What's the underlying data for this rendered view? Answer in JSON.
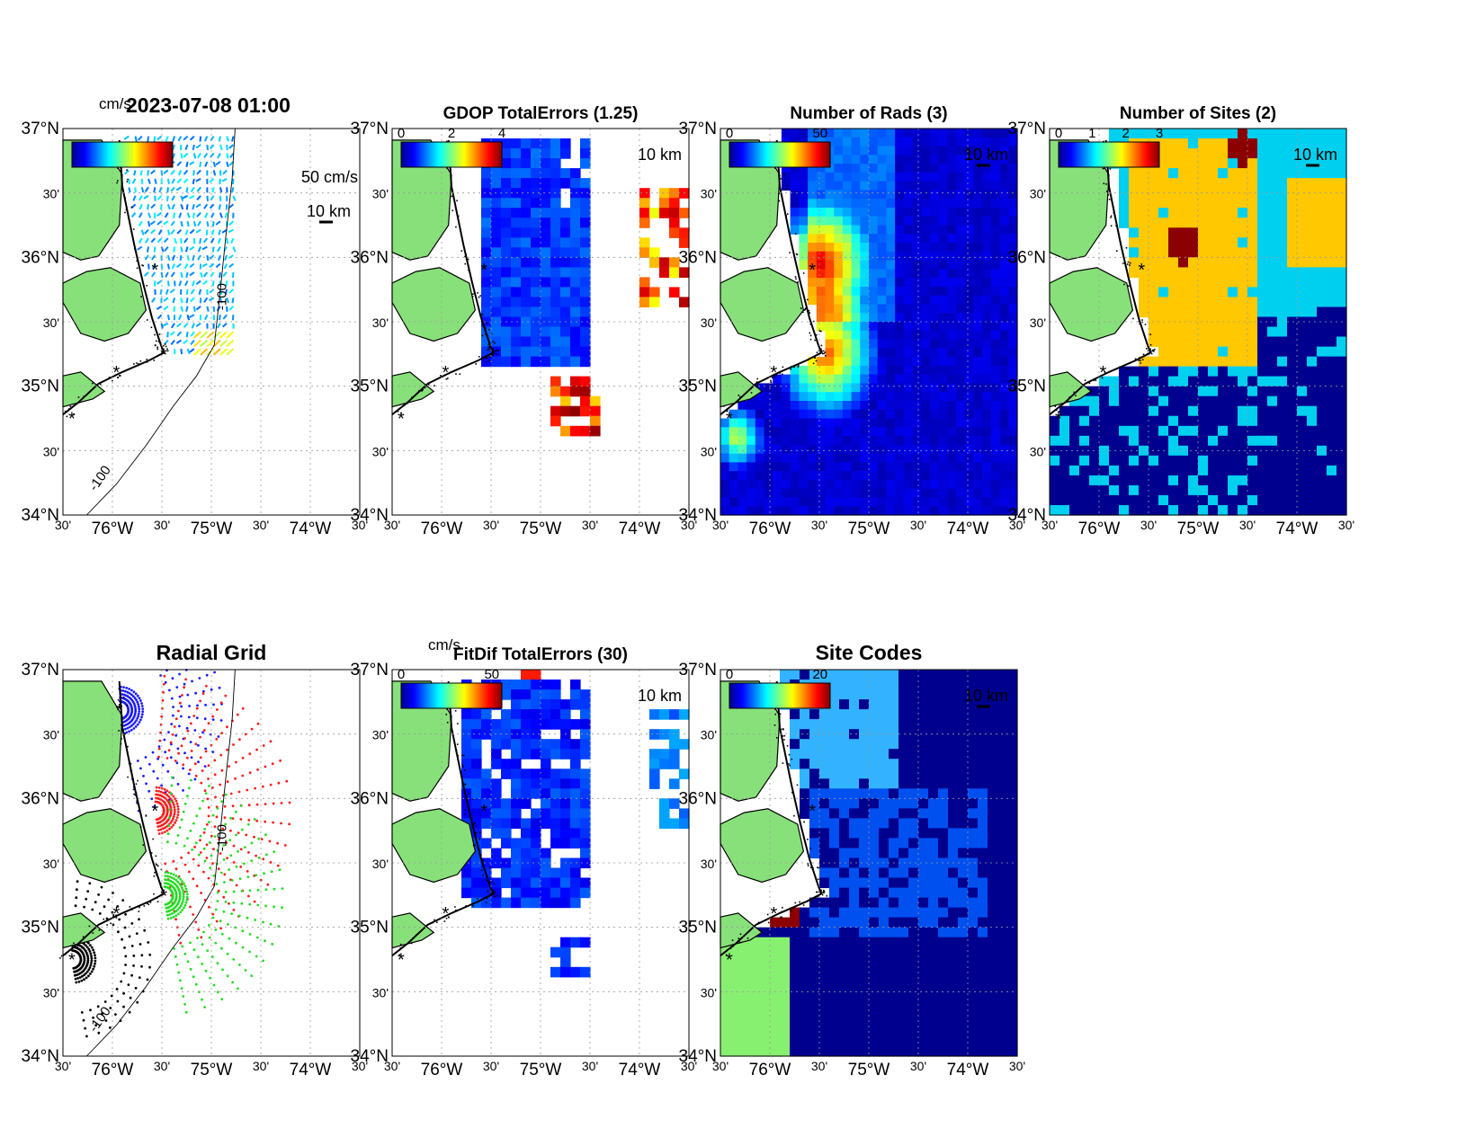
{
  "figure": {
    "timestamp": "2023-07-08 01:00",
    "units_label": "cm/s",
    "vector_scale_label": "50 cm/s",
    "scale_bar_label": "10 km",
    "isobath_label": "-100",
    "lat_ticks": [
      "37°N",
      "30'",
      "36°N",
      "30'",
      "35°N",
      "30'",
      "34°N"
    ],
    "lon_ticks": [
      "30'",
      "76°W",
      "30'",
      "75°W",
      "30'",
      "74°W",
      "30'"
    ]
  },
  "colors": {
    "land": "#88e07a",
    "site_marker": "#ff2020",
    "coast": "#000000",
    "grid_site_a": "#1a1aff",
    "grid_site_b": "#ff1a1a",
    "grid_site_c": "#22dd22",
    "grid_site_d": "#000000"
  },
  "panels": [
    {
      "key": "currents",
      "title": "",
      "colorbar_ticks": [],
      "colorbar_label": "cm/s",
      "contour_label": ""
    },
    {
      "key": "gdop",
      "title": "GDOP TotalErrors (1.25)",
      "colorbar_ticks": [
        "0",
        "2",
        "4"
      ],
      "colorbar_label": "",
      "contour_label": "1.25"
    },
    {
      "key": "nrads",
      "title": "Number of Rads (3)",
      "colorbar_ticks": [
        "0",
        "50"
      ],
      "colorbar_label": "",
      "contour_label": "3"
    },
    {
      "key": "nsites",
      "title": "Number of Sites (2)",
      "colorbar_ticks": [
        "0",
        "1",
        "2",
        "3"
      ],
      "colorbar_label": "",
      "contour_label": "2"
    },
    {
      "key": "radial_grid",
      "title": "Radial Grid",
      "colorbar_ticks": [],
      "colorbar_label": "",
      "contour_label": ""
    },
    {
      "key": "fitdif",
      "title": "FitDif TotalErrors (30)",
      "colorbar_ticks": [
        "0",
        "50"
      ],
      "colorbar_label": "cm/s",
      "contour_label": ""
    },
    {
      "key": "site_codes",
      "title": "Site Codes",
      "colorbar_ticks": [
        "0",
        "20"
      ],
      "colorbar_label": "",
      "contour_label": ""
    }
  ]
}
